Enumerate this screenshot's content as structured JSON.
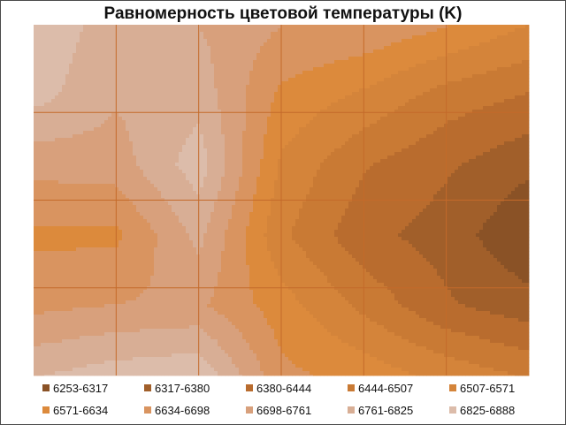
{
  "chart_data": {
    "type": "contour",
    "title": "Равномерность цветовой температуры (K)",
    "grid": true,
    "grid_cols": 6,
    "grid_rows": 4,
    "legend_position": "bottom",
    "legend_rows": 2,
    "bands": [
      {
        "label": "6253-6317",
        "min": 6253,
        "max": 6317,
        "color": "#8a5226"
      },
      {
        "label": "6317-6380",
        "min": 6317,
        "max": 6380,
        "color": "#a15f2a"
      },
      {
        "label": "6380-6444",
        "min": 6380,
        "max": 6444,
        "color": "#b96c2e"
      },
      {
        "label": "6444-6507",
        "min": 6444,
        "max": 6507,
        "color": "#c97a34"
      },
      {
        "label": "6507-6571",
        "min": 6507,
        "max": 6571,
        "color": "#d4843a"
      },
      {
        "label": "6571-6634",
        "min": 6571,
        "max": 6634,
        "color": "#dc8a3c"
      },
      {
        "label": "6634-6698",
        "min": 6634,
        "max": 6698,
        "color": "#d99460"
      },
      {
        "label": "6698-6761",
        "min": 6698,
        "max": 6761,
        "color": "#d8a07c"
      },
      {
        "label": "6761-6825",
        "min": 6761,
        "max": 6825,
        "color": "#d8ae95"
      },
      {
        "label": "6825-6888",
        "min": 6825,
        "max": 6888,
        "color": "#dcbcaa"
      }
    ],
    "values": [
      [
        6880,
        6790,
        6760,
        6700,
        6690,
        6640,
        6570
      ],
      [
        6850,
        6770,
        6800,
        6620,
        6560,
        6480,
        6440
      ],
      [
        6720,
        6730,
        6860,
        6560,
        6450,
        6390,
        6330
      ],
      [
        6620,
        6620,
        6780,
        6520,
        6400,
        6350,
        6260
      ],
      [
        6680,
        6700,
        6710,
        6600,
        6490,
        6390,
        6340
      ],
      [
        6820,
        6860,
        6880,
        6650,
        6610,
        6550,
        6500
      ]
    ]
  }
}
